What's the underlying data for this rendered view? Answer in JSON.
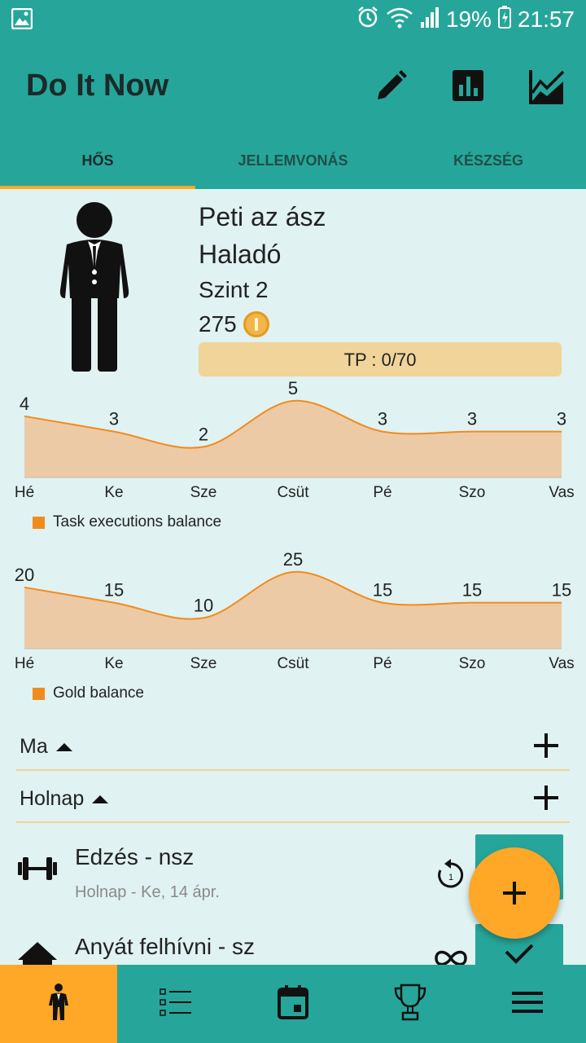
{
  "status_bar": {
    "battery": "19%",
    "time": "21:57",
    "icons": [
      "image-icon",
      "alarm-icon",
      "wifi-icon",
      "signal-icon",
      "battery-icon"
    ]
  },
  "app_bar": {
    "title": "Do It Now",
    "actions": [
      "edit-icon",
      "bar-chart-icon",
      "line-chart-icon"
    ]
  },
  "tabs": [
    {
      "label": "HŐS",
      "active": true
    },
    {
      "label": "JELLEMVONÁS",
      "active": false
    },
    {
      "label": "KÉSZSÉG",
      "active": false
    }
  ],
  "hero": {
    "name": "Peti az ász",
    "class": "Haladó",
    "level": "Szint 2",
    "gold": "275",
    "tp_label": "TP : 0/70",
    "tp_progress": 0
  },
  "chart_data": [
    {
      "type": "area",
      "categories": [
        "Hé",
        "Ke",
        "Sze",
        "Csüt",
        "Pé",
        "Szo",
        "Vas"
      ],
      "series": [
        {
          "name": "Task executions balance",
          "values": [
            4,
            3,
            2,
            5,
            3,
            3,
            3
          ]
        }
      ],
      "color": "#f08c1e",
      "fill": "#edcaa6",
      "ylim": [
        0,
        5
      ],
      "legend_position": "bottom-left"
    },
    {
      "type": "area",
      "categories": [
        "Hé",
        "Ke",
        "Sze",
        "Csüt",
        "Pé",
        "Szo",
        "Vas"
      ],
      "series": [
        {
          "name": "Gold balance",
          "values": [
            20,
            15,
            10,
            25,
            15,
            15,
            15
          ]
        }
      ],
      "color": "#f08c1e",
      "fill": "#edcaa6",
      "ylim": [
        0,
        25
      ],
      "legend_position": "bottom-left"
    }
  ],
  "sections": [
    {
      "label": "Ma"
    },
    {
      "label": "Holnap"
    }
  ],
  "tasks": [
    {
      "name": "Edzés - nsz",
      "subtitle": "Holnap - Ke, 14 ápr.",
      "icon": "dumbbell-icon",
      "repeat": "repeat-once-icon"
    },
    {
      "name": "Anyát felhívni - sz",
      "subtitle": "",
      "icon": "home-icon",
      "repeat": "infinity-icon"
    }
  ],
  "bottom_nav": [
    {
      "icon": "hero-icon",
      "active": true
    },
    {
      "icon": "list-icon",
      "active": false
    },
    {
      "icon": "calendar-icon",
      "active": false
    },
    {
      "icon": "trophy-icon",
      "active": false
    },
    {
      "icon": "menu-icon",
      "active": false
    }
  ],
  "colors": {
    "primary": "#26a69a",
    "accent": "#ffa726",
    "background": "#e0f2f1",
    "chart_line": "#f08c1e",
    "chart_fill": "#edcaa6",
    "tp_bar": "#f0d49a"
  }
}
